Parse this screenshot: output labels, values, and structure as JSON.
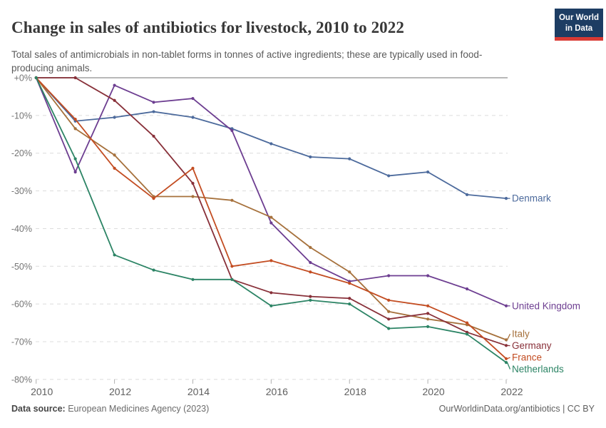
{
  "header": {
    "title": "Change in sales of antibiotics for livestock, 2010 to 2022",
    "subtitle": "Total sales of antimicrobials in non-tablet forms in tonnes of active ingredients; these are typically used in food-producing animals.",
    "logo": {
      "line1": "Our World",
      "line2": "in Data",
      "bg_color": "#1d3d63",
      "accent_color": "#d93a34"
    }
  },
  "chart_data": {
    "type": "line",
    "title": "Change in sales of antibiotics for livestock, 2010 to 2022",
    "x": [
      2010,
      2011,
      2012,
      2013,
      2014,
      2015,
      2016,
      2017,
      2018,
      2019,
      2020,
      2021,
      2022
    ],
    "x_tick_labels": [
      "2010",
      "2012",
      "2014",
      "2016",
      "2018",
      "2020",
      "2022"
    ],
    "y_tick_labels": [
      "+0%",
      "-10%",
      "-20%",
      "-30%",
      "-40%",
      "-50%",
      "-60%",
      "-70%",
      "-80%"
    ],
    "ylim": [
      -80,
      0
    ],
    "unit": "%",
    "grid": true,
    "legend_position": "right-edge-labels",
    "series": [
      {
        "name": "Denmark",
        "color": "#4C6A9C",
        "values": [
          0,
          -11.5,
          -10.5,
          -9,
          -10.5,
          -13.5,
          -17.5,
          -21,
          -21.5,
          -26,
          -25,
          -31,
          -32
        ]
      },
      {
        "name": "United Kingdom",
        "color": "#6D3E91",
        "values": [
          0,
          -25,
          -2,
          -6.5,
          -5.5,
          -14,
          -38.5,
          -49,
          -54,
          -52.5,
          -52.5,
          -56,
          -60.5
        ]
      },
      {
        "name": "Italy",
        "color": "#A6713C",
        "values": [
          0,
          -13.5,
          -20.5,
          -31.5,
          -31.5,
          -32.5,
          -37,
          -45,
          -51.5,
          -62,
          -64,
          -65.5,
          -69.5
        ]
      },
      {
        "name": "Germany",
        "color": "#883039",
        "values": [
          0,
          0,
          -6,
          -15.5,
          -28,
          -53.5,
          -57,
          -58,
          -58.5,
          -64,
          -62.5,
          -67.5,
          -71
        ]
      },
      {
        "name": "France",
        "color": "#C34D22",
        "values": [
          0,
          -11,
          -24,
          -32,
          -24,
          -50,
          -48.5,
          -51.5,
          -54.5,
          -59,
          -60.5,
          -65,
          -74.5
        ]
      },
      {
        "name": "Netherlands",
        "color": "#2C8465",
        "values": [
          0,
          -21.5,
          -47,
          -51,
          -53.5,
          -53.5,
          -60.5,
          -59,
          -60,
          -66.5,
          -66,
          -68,
          -75.5
        ]
      }
    ]
  },
  "footer": {
    "source_label": "Data source:",
    "source_value": "European Medicines Agency (2023)",
    "credit": "OurWorldinData.org/antibiotics | CC BY"
  }
}
